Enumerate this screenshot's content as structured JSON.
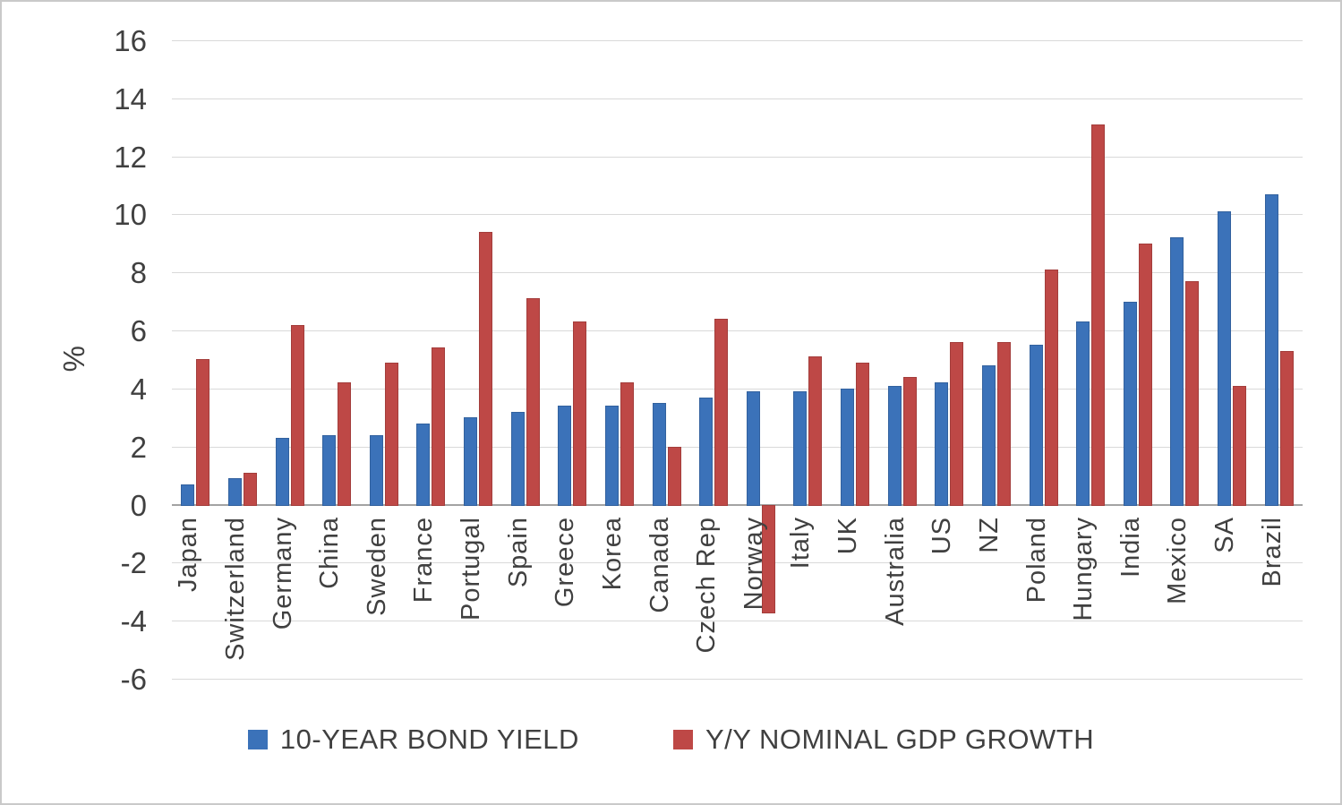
{
  "chart_data": {
    "type": "bar",
    "title": "",
    "xlabel": "",
    "ylabel": "%",
    "ylim": [
      -6,
      16
    ],
    "yticks": [
      16,
      14,
      12,
      10,
      8,
      6,
      4,
      2,
      0,
      -2,
      -4,
      -6
    ],
    "grid": true,
    "legend_position": "bottom",
    "categories": [
      "Japan",
      "Switzerland",
      "Germany",
      "China",
      "Sweden",
      "France",
      "Portugal",
      "Spain",
      "Greece",
      "Korea",
      "Canada",
      "Czech Rep",
      "Norway",
      "Italy",
      "UK",
      "Australia",
      "US",
      "NZ",
      "Poland",
      "Hungary",
      "India",
      "Mexico",
      "SA",
      "Brazil"
    ],
    "series": [
      {
        "name": "10-YEAR BOND YIELD",
        "color": "#3b72b9",
        "values": [
          0.7,
          0.9,
          2.3,
          2.4,
          2.4,
          2.8,
          3.0,
          3.2,
          3.4,
          3.4,
          3.5,
          3.7,
          3.9,
          3.9,
          4.0,
          4.1,
          4.2,
          4.8,
          5.5,
          6.3,
          7.0,
          9.2,
          10.1,
          10.7
        ]
      },
      {
        "name": "Y/Y NOMINAL GDP GROWTH",
        "color": "#be4846",
        "values": [
          5.0,
          1.1,
          6.2,
          4.2,
          4.9,
          5.4,
          9.4,
          7.1,
          6.3,
          4.2,
          2.0,
          6.4,
          -3.7,
          5.1,
          4.9,
          4.4,
          5.6,
          5.6,
          8.1,
          13.1,
          9.0,
          7.7,
          4.1,
          5.3
        ]
      }
    ]
  }
}
